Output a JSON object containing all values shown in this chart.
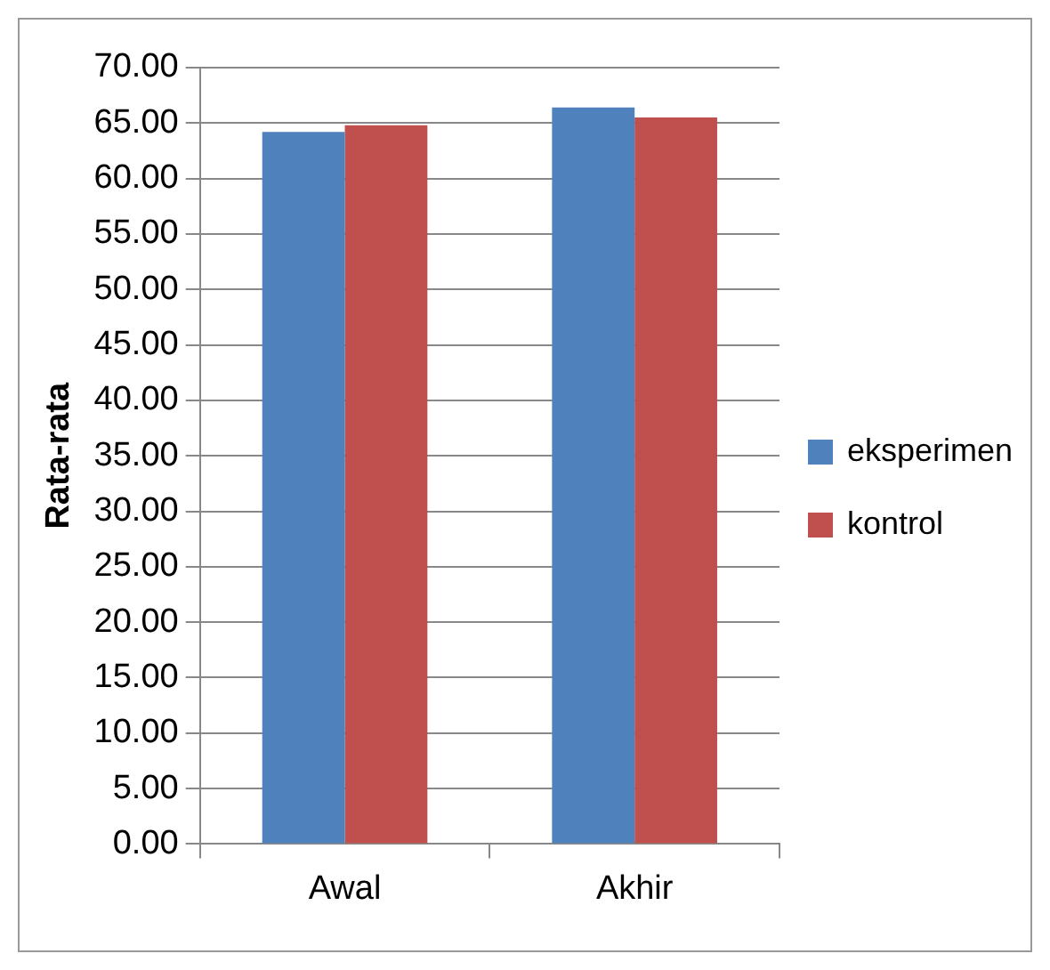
{
  "chart_data": {
    "type": "bar",
    "ylabel": "Rata-rata",
    "categories": [
      "Awal",
      "Akhir"
    ],
    "series": [
      {
        "name": "eksperimen",
        "color": "#4f81bd",
        "values": [
          64.2,
          66.4
        ]
      },
      {
        "name": "kontrol",
        "color": "#c0504d",
        "values": [
          64.8,
          65.5
        ]
      }
    ],
    "ylim": [
      0,
      70
    ],
    "yticks": [
      {
        "value": 0,
        "label": "0.00"
      },
      {
        "value": 5,
        "label": "5.00"
      },
      {
        "value": 10,
        "label": "10.00"
      },
      {
        "value": 15,
        "label": "15.00"
      },
      {
        "value": 20,
        "label": "20.00"
      },
      {
        "value": 25,
        "label": "25.00"
      },
      {
        "value": 30,
        "label": "30.00"
      },
      {
        "value": 35,
        "label": "35.00"
      },
      {
        "value": 40,
        "label": "40.00"
      },
      {
        "value": 45,
        "label": "45.00"
      },
      {
        "value": 50,
        "label": "50.00"
      },
      {
        "value": 55,
        "label": "55.00"
      },
      {
        "value": 60,
        "label": "60.00"
      },
      {
        "value": 65,
        "label": "65.00"
      },
      {
        "value": 70,
        "label": "70.00"
      }
    ],
    "grid": "y",
    "legend": "right"
  }
}
